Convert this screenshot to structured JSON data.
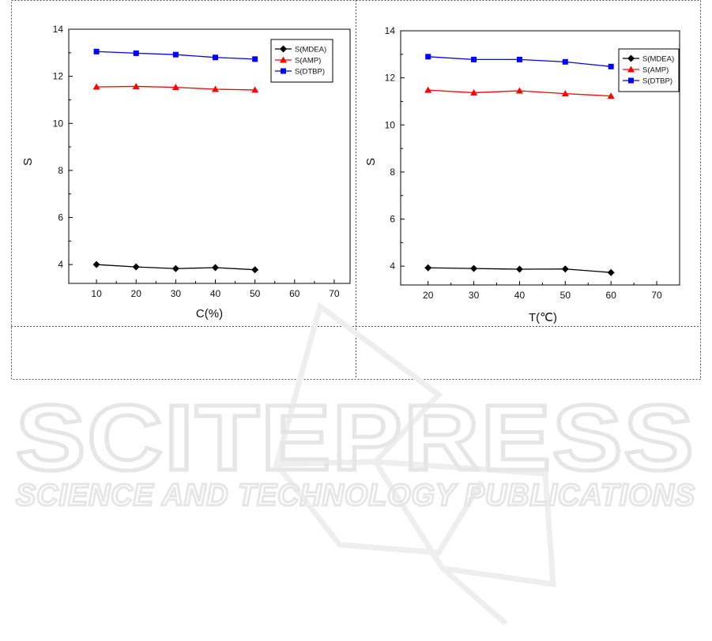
{
  "watermark": {
    "title": "SCITEPRESS",
    "subtitle": "SCIENCE AND TECHNOLOGY PUBLICATIONS"
  },
  "chart_data": [
    {
      "type": "line",
      "title": "",
      "xlabel": "C(%)",
      "ylabel": "S",
      "xlim": [
        3,
        74
      ],
      "ylim": [
        3.2,
        14
      ],
      "xticks": [
        10,
        20,
        30,
        40,
        50,
        60,
        70
      ],
      "yticks": [
        4,
        6,
        8,
        10,
        12,
        14
      ],
      "grid": false,
      "legend_position": "top-right",
      "x": [
        10,
        20,
        30,
        40,
        50
      ],
      "series": [
        {
          "name": "S(MDEA)",
          "color": "#000000",
          "marker": "diamond",
          "values": [
            4.0,
            3.9,
            3.83,
            3.87,
            3.78
          ]
        },
        {
          "name": "S(AMP)",
          "color": "#ff0000",
          "marker": "triangle",
          "values": [
            11.55,
            11.57,
            11.53,
            11.45,
            11.42
          ]
        },
        {
          "name": "S(DTBP)",
          "color": "#0000ff",
          "marker": "square",
          "values": [
            13.05,
            12.98,
            12.92,
            12.8,
            12.73
          ]
        }
      ]
    },
    {
      "type": "line",
      "title": "",
      "xlabel": "T(℃)",
      "ylabel": "S",
      "xlim": [
        14,
        75
      ],
      "ylim": [
        3.2,
        14
      ],
      "xticks": [
        20,
        30,
        40,
        50,
        60,
        70
      ],
      "yticks": [
        4,
        6,
        8,
        10,
        12,
        14
      ],
      "grid": false,
      "legend_position": "top-right",
      "x": [
        20,
        30,
        40,
        50,
        60
      ],
      "series": [
        {
          "name": "S(MDEA)",
          "color": "#000000",
          "marker": "diamond",
          "values": [
            3.93,
            3.9,
            3.87,
            3.88,
            3.73
          ]
        },
        {
          "name": "S(AMP)",
          "color": "#ff0000",
          "marker": "triangle",
          "values": [
            11.48,
            11.37,
            11.45,
            11.33,
            11.23
          ]
        },
        {
          "name": "S(DTBP)",
          "color": "#0000ff",
          "marker": "square",
          "values": [
            12.9,
            12.78,
            12.78,
            12.68,
            12.48
          ]
        }
      ]
    }
  ]
}
